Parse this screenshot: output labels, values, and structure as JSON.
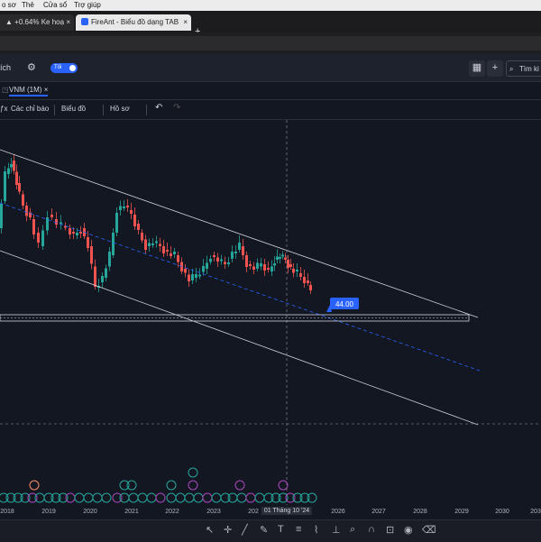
{
  "menubar": {
    "items": [
      "o sơ",
      "Thẻ",
      "Cửa sổ",
      "Trợ giúp"
    ]
  },
  "tabs": [
    {
      "label": "▲ +0.64% Ke hoạ",
      "close": "×"
    },
    {
      "label": "FireAnt - Biểu đồ dạng TAB",
      "close": "×"
    }
  ],
  "new_tab": "+",
  "toolbar": {
    "left_label": "ích",
    "toggle_label": "Tối",
    "search_placeholder": "Tìm ki",
    "add_label": "+"
  },
  "chart_tab": {
    "label": "VNM (1M)",
    "close": "×"
  },
  "indicator_bar": {
    "fx": "ƒx",
    "indicators": "Các chỉ báo",
    "chart_type": "Biểu đồ",
    "profile": "Hồ sơ",
    "undo": "↶",
    "redo": "↷"
  },
  "price_label": "44.00",
  "time_axis": {
    "years": [
      "2018",
      "2019",
      "2020",
      "2021",
      "2022",
      "2023",
      "202",
      "2026",
      "2027",
      "2028",
      "2029",
      "2030",
      "203"
    ],
    "crosshair_date": "01 Tháng 10 '24"
  },
  "chart_data": {
    "type": "candlestick",
    "symbol": "VNM",
    "interval": "1M",
    "price_line": 44.0,
    "colors": {
      "up": "#26a69a",
      "down": "#ef5350",
      "channel": "#d1d4dc",
      "trend": "#2962ff"
    },
    "event_marker_types": [
      "S",
      "F",
      "D"
    ]
  },
  "colors": {
    "background": "#131722",
    "accent": "#2962ff"
  },
  "drawing_tools": [
    "cursor-icon",
    "crosshair-icon",
    "trend-line-icon",
    "pencil-icon",
    "text-icon",
    "fib-icon",
    "brush-icon",
    "measure-icon",
    "zoom-icon",
    "magnet-icon",
    "lock-icon",
    "eye-icon",
    "trash-icon"
  ]
}
